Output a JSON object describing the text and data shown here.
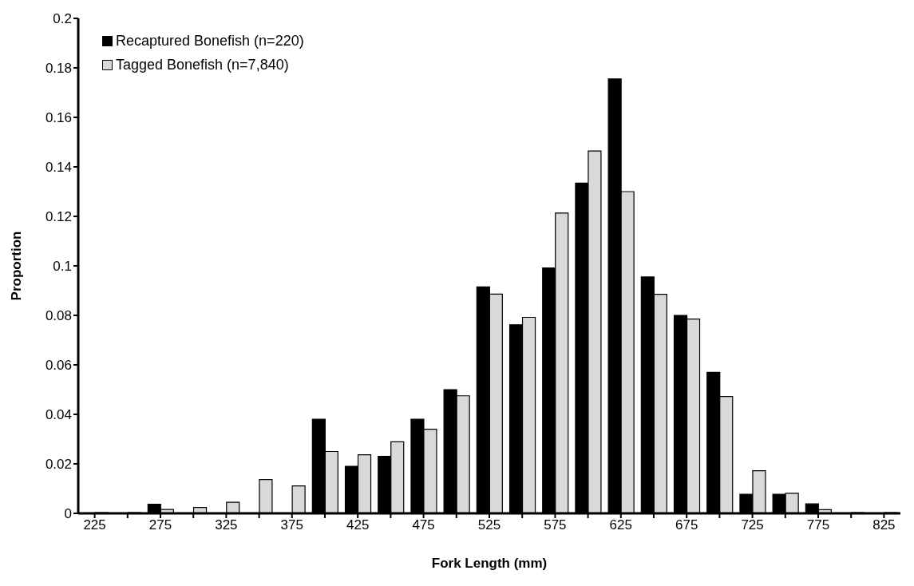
{
  "chart_data": {
    "type": "bar",
    "xlabel": "Fork Length (mm)",
    "ylabel": "Proportion",
    "categories": [
      "225",
      null,
      "275",
      null,
      "325",
      null,
      "375",
      null,
      "425",
      null,
      "475",
      null,
      "525",
      null,
      "575",
      null,
      "625",
      null,
      "675",
      null,
      "725",
      null,
      "775",
      null,
      "825"
    ],
    "series": [
      {
        "name": "Recaptured Bonefish (n=220)",
        "color": "#000000",
        "values": [
          0,
          0,
          0.0037,
          0,
          0,
          0,
          0,
          0.038,
          0.019,
          0.023,
          0.038,
          0.05,
          0.0915,
          0.0762,
          0.0992,
          0.1334,
          0.1755,
          0.0955,
          0.08,
          0.057,
          0.0077,
          0.0077,
          0.0038,
          0,
          0
        ]
      },
      {
        "name": "Tagged Bonefish (n=7,840)",
        "color": "#d9d9d9",
        "values": [
          0.0003,
          0.0003,
          0.0016,
          0.0024,
          0.0045,
          0.0137,
          0.0111,
          0.025,
          0.0237,
          0.0289,
          0.034,
          0.0475,
          0.0886,
          0.0792,
          0.1213,
          0.1464,
          0.13,
          0.0885,
          0.0785,
          0.0472,
          0.0172,
          0.0081,
          0.0015,
          0.0003,
          0.0003
        ]
      }
    ],
    "ylim": [
      0,
      0.2
    ],
    "yticks": [
      0,
      0.02,
      0.04,
      0.06,
      0.08,
      0.1,
      0.12,
      0.14,
      0.16,
      0.18,
      0.2
    ],
    "grid": false,
    "legend": "top left"
  }
}
